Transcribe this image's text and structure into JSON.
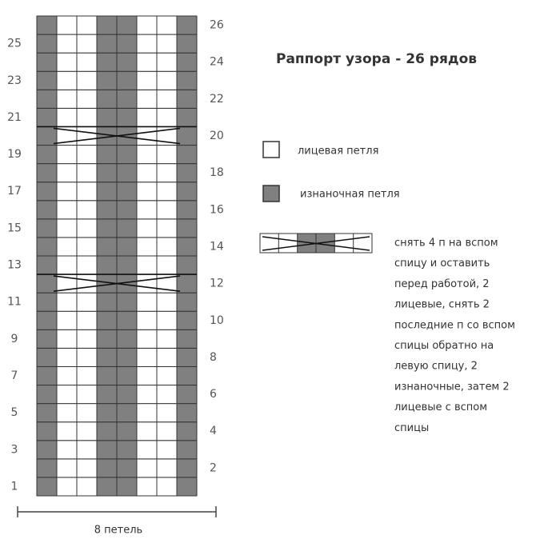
{
  "title": "Раппорт узора - 26 рядов",
  "row_numbers": [
    1,
    2,
    3,
    4,
    5,
    6,
    7,
    8,
    9,
    10,
    11,
    12,
    13,
    14,
    15,
    16,
    17,
    18,
    19,
    20,
    21,
    22,
    23,
    24,
    25,
    26
  ],
  "width_label": "8 петель",
  "legend": {
    "knit": "лицевая петля",
    "purl": "изнаночная петля",
    "cable_lines": [
      "снять 4 п на вспом",
      "спицу и  оставить",
      "перед работой, 2",
      "лицевые, снять 2",
      "последние п со вспом",
      "спицы обратно на",
      "левую спицу, 2",
      "изнаночные, затем 2",
      "лицевые с вспом",
      "спицы"
    ]
  }
}
